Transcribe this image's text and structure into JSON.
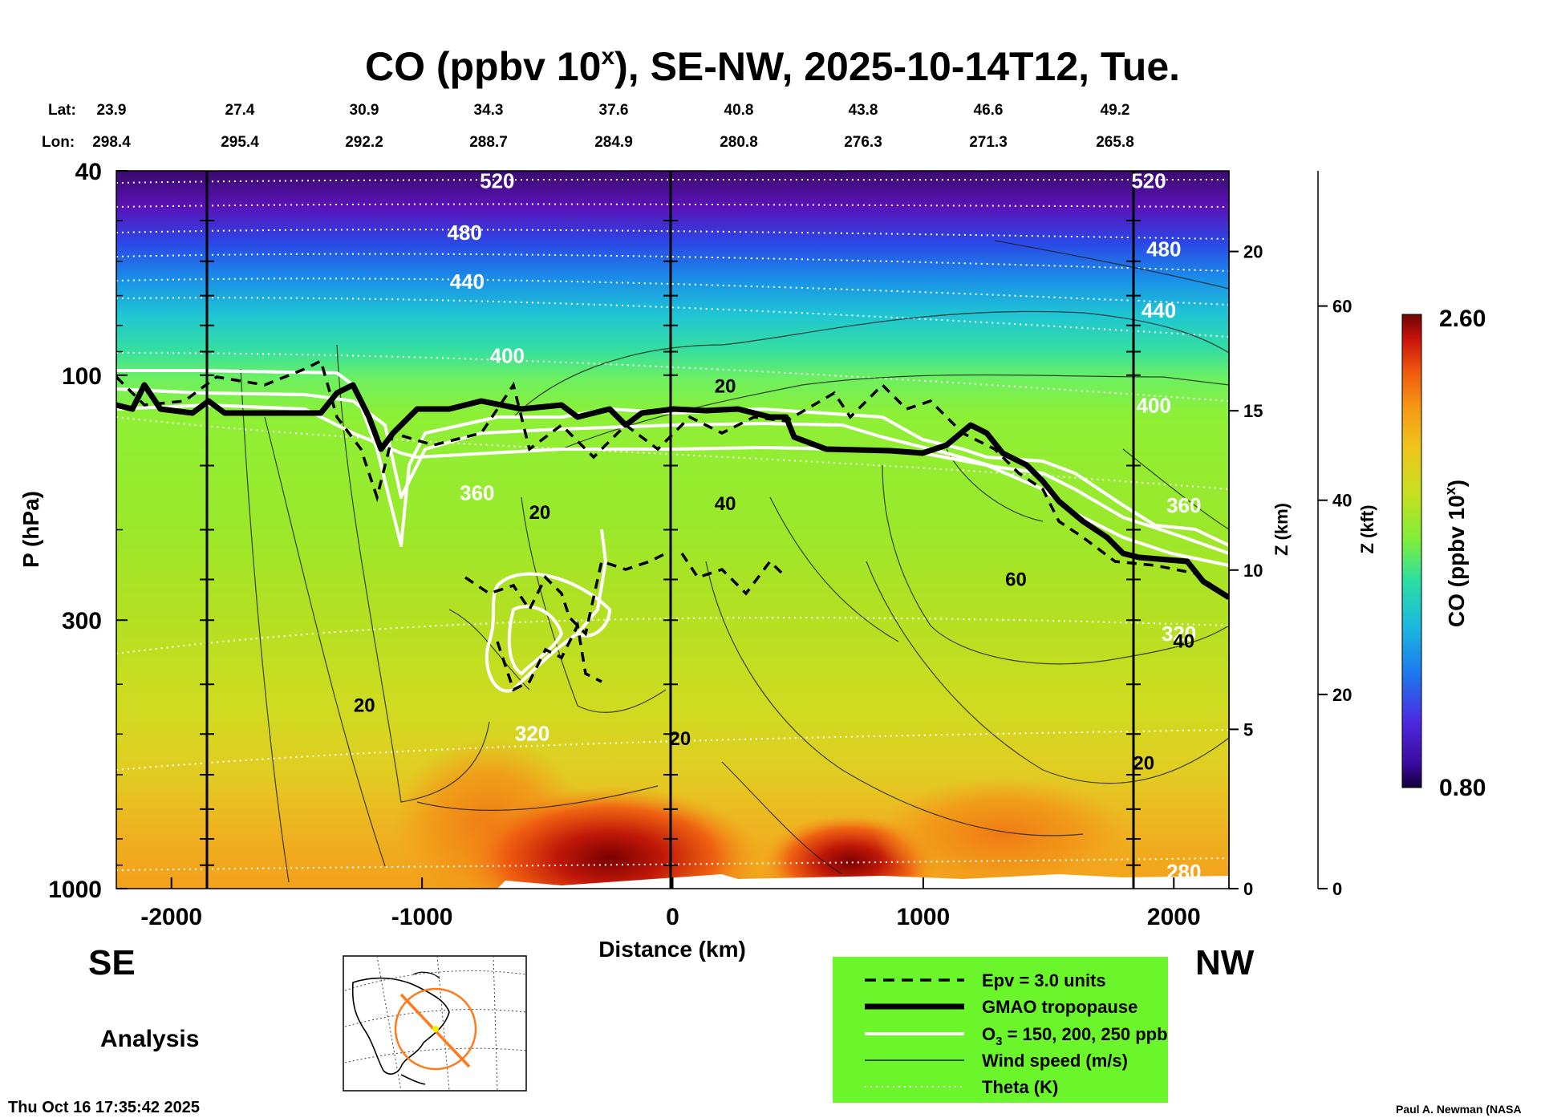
{
  "chart_data": {
    "type": "heatmap",
    "title_prefix": "CO (ppbv 10",
    "title_sup": "x",
    "title_suffix": "), SE-NW, 2025-10-14T12, Tue.",
    "lat_label": "Lat:",
    "lon_label": "Lon:",
    "lat_values": [
      "23.9",
      "27.4",
      "30.9",
      "34.3",
      "37.6",
      "40.8",
      "43.8",
      "46.6",
      "49.2"
    ],
    "lon_values": [
      "298.4",
      "295.4",
      "292.2",
      "288.7",
      "284.9",
      "280.8",
      "276.3",
      "271.3",
      "265.8"
    ],
    "xlabel": "Distance (km)",
    "xlim": [
      -2220,
      2220
    ],
    "x_ticks": [
      "-2000",
      "-1000",
      "0",
      "1000",
      "2000"
    ],
    "x_tick_values": [
      -2000,
      -1000,
      0,
      1000,
      2000
    ],
    "ylabel": "P (hPa)",
    "ylim": [
      1000,
      40
    ],
    "y_ticks": [
      "40",
      "100",
      "300",
      "1000"
    ],
    "y_tick_values": [
      40,
      100,
      300,
      1000
    ],
    "z_km_label": "Z (km)",
    "z_km_ticks": [
      "0",
      "5",
      "10",
      "15",
      "20"
    ],
    "z_kft_label": "Z (kft)",
    "z_kft_ticks": [
      "0",
      "20",
      "40",
      "60"
    ],
    "left_direction": "SE",
    "right_direction": "NW",
    "colorbar_label_prefix": "CO (ppbv 10",
    "colorbar_label_sup": "x",
    "colorbar_label_suffix": ")",
    "colorbar_min": "0.80",
    "colorbar_max": "2.60",
    "theta_labels": [
      {
        "text": "520",
        "x": -700,
        "p": 42
      },
      {
        "text": "480",
        "x": -830,
        "p": 53
      },
      {
        "text": "440",
        "x": -820,
        "p": 66
      },
      {
        "text": "400",
        "x": -660,
        "p": 92
      },
      {
        "text": "360",
        "x": -780,
        "p": 170
      },
      {
        "text": "320",
        "x": -560,
        "p": 500
      },
      {
        "text": "280",
        "x": 2040,
        "p": 930
      },
      {
        "text": "520",
        "x": 1900,
        "p": 42
      },
      {
        "text": "480",
        "x": 1960,
        "p": 57
      },
      {
        "text": "440",
        "x": 1940,
        "p": 75
      },
      {
        "text": "400",
        "x": 1920,
        "p": 115
      },
      {
        "text": "360",
        "x": 2040,
        "p": 180
      },
      {
        "text": "320",
        "x": 2020,
        "p": 320
      }
    ],
    "wind_labels": [
      {
        "text": "20",
        "x": -1230,
        "p": 440
      },
      {
        "text": "20",
        "x": -530,
        "p": 185
      },
      {
        "text": "20",
        "x": 210,
        "p": 105
      },
      {
        "text": "40",
        "x": 210,
        "p": 178
      },
      {
        "text": "20",
        "x": 30,
        "p": 510
      },
      {
        "text": "60",
        "x": 1370,
        "p": 250
      },
      {
        "text": "40",
        "x": 2040,
        "p": 330
      },
      {
        "text": "20",
        "x": 1880,
        "p": 570
      }
    ],
    "legend": [
      {
        "label": "Epv = 3.0 units",
        "style": "dashed"
      },
      {
        "label": "GMAO tropopause",
        "style": "thick"
      },
      {
        "label_prefix": "O",
        "label_sub": "3",
        "label_suffix": " = 150, 200, 250 ppb",
        "style": "white"
      },
      {
        "label": "Wind speed (m/s)",
        "style": "thin"
      },
      {
        "label": "Theta (K)",
        "style": "dotted"
      }
    ],
    "analysis_label": "Analysis",
    "timestamp": "Thu Oct 16 17:35:42 2025",
    "credit": "Paul A. Newman (NASA"
  },
  "colors": {
    "legend_bg": "#6bf52b",
    "map_cross": "#ff7a1a",
    "map_marker": "#f2f200"
  }
}
